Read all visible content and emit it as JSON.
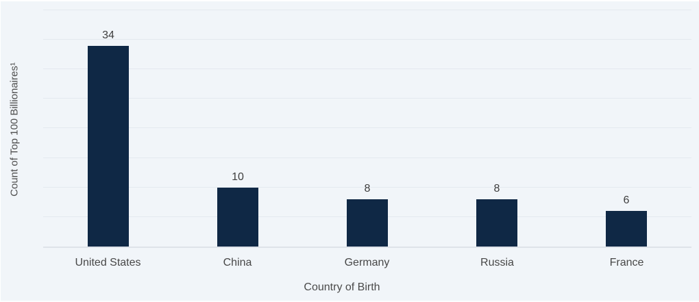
{
  "chart_data": {
    "type": "bar",
    "title": "",
    "categories": [
      "United States",
      "China",
      "Germany",
      "Russia",
      "France"
    ],
    "values": [
      34,
      10,
      8,
      8,
      6
    ],
    "data_labels": [
      "34",
      "10",
      "8",
      "8",
      "6"
    ],
    "xlabel": "Country of Birth",
    "ylabel": "Count of Top 100 Billionaires¹",
    "ylim": [
      0,
      40
    ],
    "gridline_step": 5,
    "grid": "horizontal",
    "y_tick_labels_shown": false,
    "legend_position": "none"
  },
  "style": {
    "background_color": "#f1f5f9",
    "bar_color": "#0f2845",
    "gridline_color": "#e4e9ef",
    "axis_line_color": "#dee3e9",
    "label_text_color": "#3d3d3d",
    "axis_title_color": "#4d4d4d"
  }
}
